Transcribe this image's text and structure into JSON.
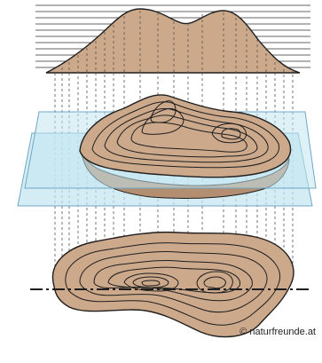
{
  "colors": {
    "terrain_fill": "#cda98c",
    "terrain_stroke": "#1e1e1e",
    "plane_fill": "#c2e5f1",
    "plane_stroke": "#6fa8c5",
    "guide_line": "#555555"
  },
  "credit": "© naturfreunde.at"
}
